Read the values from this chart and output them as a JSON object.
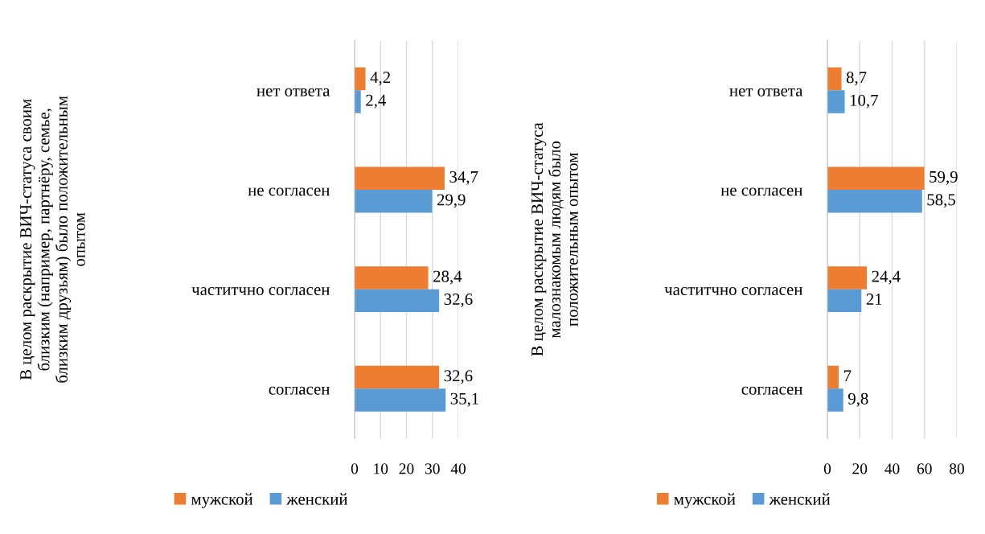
{
  "chart_data": [
    {
      "type": "bar",
      "orientation": "horizontal",
      "ylabel": "В целом раскрытие ВИЧ-статуса своим\nблизким (например, партнёру, семье,\nблизким друзьям) было положительным\nопытом",
      "categories": [
        "нет ответа",
        "не согласен",
        "частитчно согласен",
        "согласен"
      ],
      "series": [
        {
          "name": "мужской",
          "color": "#ed7d31",
          "values": [
            4.2,
            34.7,
            28.4,
            32.6
          ],
          "value_labels": [
            "4,2",
            "34,7",
            "28,4",
            "32,6"
          ]
        },
        {
          "name": "женский",
          "color": "#5b9bd5",
          "values": [
            2.4,
            29.9,
            32.6,
            35.1
          ],
          "value_labels": [
            "2,4",
            "29,9",
            "32,6",
            "35,1"
          ]
        }
      ],
      "xlim": [
        0,
        40
      ],
      "xticks": [
        0,
        10,
        20,
        30,
        40
      ],
      "grid": "x",
      "legend": "bottom"
    },
    {
      "type": "bar",
      "orientation": "horizontal",
      "ylabel": "В целом раскрытие ВИЧ-статуса\nмалознакомым людям было\nположительным опытом",
      "categories": [
        "нет ответа",
        "не согласен",
        "частитчно согласен",
        "согласен"
      ],
      "series": [
        {
          "name": "мужской",
          "color": "#ed7d31",
          "values": [
            8.7,
            59.9,
            24.4,
            7
          ],
          "value_labels": [
            "8,7",
            "59,9",
            "24,4",
            "7"
          ]
        },
        {
          "name": "женский",
          "color": "#5b9bd5",
          "values": [
            10.7,
            58.5,
            21,
            9.8
          ],
          "value_labels": [
            "10,7",
            "58,5",
            "21",
            "9,8"
          ]
        }
      ],
      "xlim": [
        0,
        80
      ],
      "xticks": [
        0,
        20,
        40,
        60,
        80
      ],
      "grid": "x",
      "legend": "bottom"
    }
  ]
}
